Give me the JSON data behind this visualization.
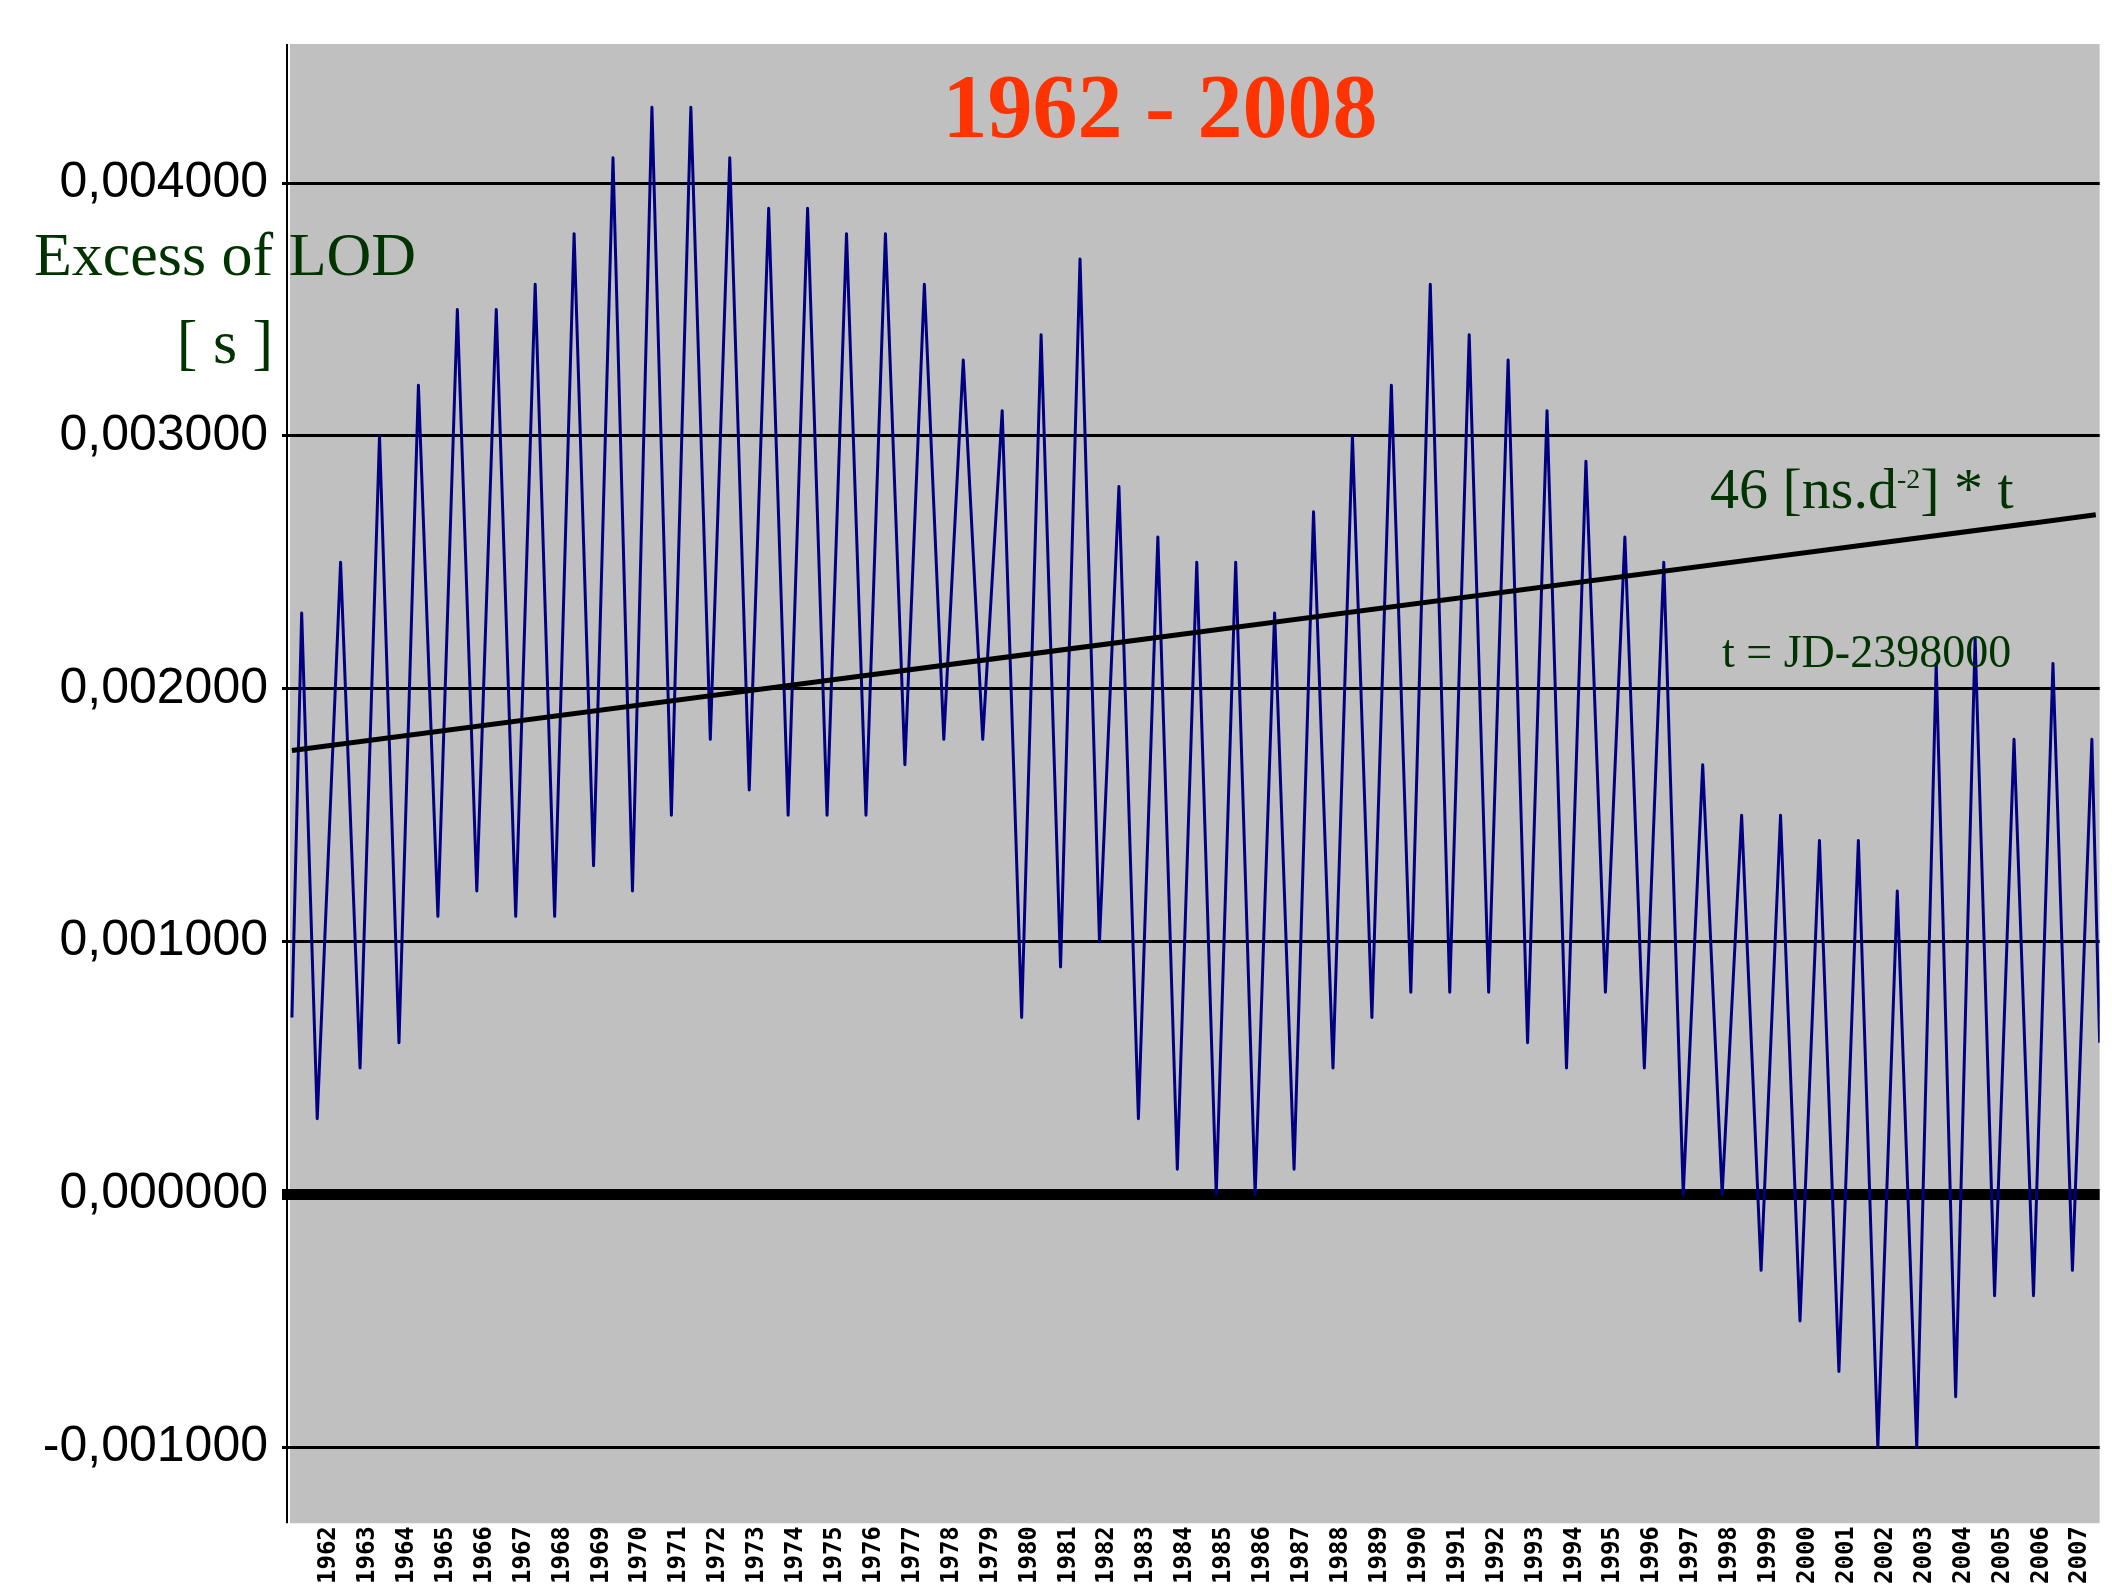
{
  "chart_data": {
    "type": "line",
    "title": "1962 - 2008",
    "ylabel": "Excess of LOD [ s ]",
    "annotations": [
      "46 [ns.d$^{-2}$] * t",
      "t = JD-2398000"
    ],
    "xlim": [
      1961,
      2007.5
    ],
    "xticks": [
      1962,
      1963,
      1964,
      1965,
      1966,
      1967,
      1968,
      1969,
      1970,
      1971,
      1972,
      1973,
      1974,
      1975,
      1976,
      1977,
      1978,
      1979,
      1980,
      1981,
      1982,
      1983,
      1984,
      1985,
      1986,
      1987,
      1988,
      1989,
      1990,
      1991,
      1992,
      1993,
      1994,
      1995,
      1996,
      1997,
      1998,
      1999,
      2000,
      2001,
      2002,
      2003,
      2004,
      2005,
      2006,
      2007
    ],
    "ylim": [
      -0.0013,
      0.00455
    ],
    "yticks": [
      {
        "value": -0.001,
        "label": "-0,001000"
      },
      {
        "value": 0,
        "label": "0,000000"
      },
      {
        "value": 0.001,
        "label": "0,001000"
      },
      {
        "value": 0.002,
        "label": "0,002000"
      },
      {
        "value": 0.003,
        "label": "0,003000"
      },
      {
        "value": 0.004,
        "label": "0,004000"
      }
    ],
    "grid": "y",
    "legend": false,
    "marker": "none",
    "series": [
      {
        "type": "line",
        "color": "#000080",
        "x": [
          1961.05,
          1961.3,
          1961.7,
          1962.3,
          1962.8,
          1963.3,
          1963.8,
          1964.3,
          1964.8,
          1965.3,
          1965.8,
          1966.3,
          1966.8,
          1967.3,
          1967.8,
          1968.3,
          1968.8,
          1969.3,
          1969.8,
          1970.3,
          1970.8,
          1971.3,
          1971.8,
          1972.3,
          1972.8,
          1973.3,
          1973.8,
          1974.3,
          1974.8,
          1975.3,
          1975.8,
          1976.3,
          1976.8,
          1977.3,
          1977.8,
          1978.3,
          1978.8,
          1979.3,
          1979.8,
          1980.3,
          1980.8,
          1981.3,
          1981.8,
          1982.3,
          1982.8,
          1983.3,
          1983.8,
          1984.3,
          1984.8,
          1985.3,
          1985.8,
          1986.3,
          1986.8,
          1987.3,
          1987.8,
          1988.3,
          1988.8,
          1989.3,
          1989.8,
          1990.3,
          1990.8,
          1991.3,
          1991.8,
          1992.3,
          1992.8,
          1993.3,
          1993.8,
          1994.3,
          1994.8,
          1995.3,
          1995.8,
          1996.3,
          1996.8,
          1997.3,
          1997.8,
          1998.3,
          1998.8,
          1999.3,
          1999.8,
          2000.3,
          2000.8,
          2001.3,
          2001.8,
          2002.3,
          2002.8,
          2003.3,
          2003.8,
          2004.3,
          2004.8,
          2005.3,
          2005.8,
          2006.3,
          2006.8,
          2007.3,
          2007.5
        ],
        "values": [
          0.0007,
          0.0023,
          0.0003,
          0.0025,
          0.0005,
          0.003,
          0.0006,
          0.0032,
          0.0011,
          0.0035,
          0.0012,
          0.0035,
          0.0011,
          0.0036,
          0.0011,
          0.0038,
          0.0013,
          0.0041,
          0.0012,
          0.0043,
          0.0015,
          0.0043,
          0.0018,
          0.0041,
          0.0016,
          0.0039,
          0.0015,
          0.0039,
          0.0015,
          0.0038,
          0.0015,
          0.0038,
          0.0017,
          0.0036,
          0.0018,
          0.0033,
          0.0018,
          0.0031,
          0.0007,
          0.0034,
          0.0009,
          0.0037,
          0.001,
          0.0028,
          0.0003,
          0.0026,
          0.0001,
          0.0025,
          0.0,
          0.0025,
          0.0,
          0.0023,
          0.0001,
          0.0027,
          0.0005,
          0.003,
          0.0007,
          0.0032,
          0.0008,
          0.0036,
          0.0008,
          0.0034,
          0.0008,
          0.0033,
          0.0006,
          0.0031,
          0.0005,
          0.0029,
          0.0008,
          0.0026,
          0.0005,
          0.0025,
          0.0,
          0.0017,
          0.0,
          0.0015,
          -0.0003,
          0.0015,
          -0.0005,
          0.0014,
          -0.0007,
          0.0014,
          -0.001,
          0.0012,
          -0.001,
          0.0021,
          -0.0008,
          0.0022,
          -0.0004,
          0.0018,
          -0.0004,
          0.0021,
          -0.0003,
          0.0018,
          0.0006
        ]
      },
      {
        "type": "line",
        "color": "#000000",
        "line_style": "solid",
        "x": [
          1961.05,
          2007.4
        ],
        "values": [
          0.001756,
          0.002688
        ]
      }
    ]
  }
}
